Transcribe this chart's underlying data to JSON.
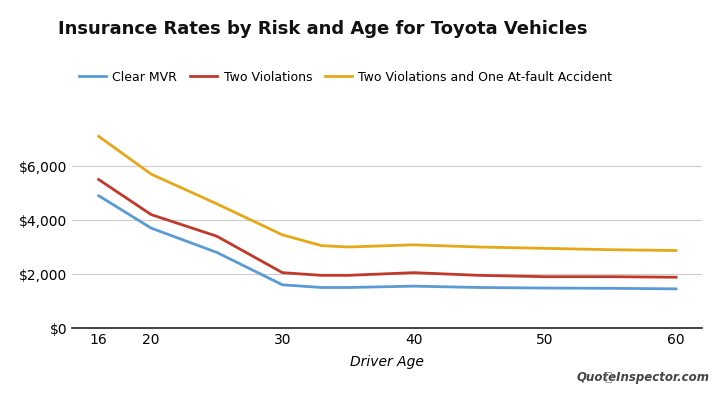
{
  "title": "Insurance Rates by Risk and Age for Toyota Vehicles",
  "xlabel": "Driver Age",
  "ages": [
    16,
    20,
    25,
    30,
    33,
    35,
    40,
    45,
    50,
    55,
    60
  ],
  "clear_mvr": [
    4900,
    3700,
    2800,
    1600,
    1500,
    1500,
    1550,
    1500,
    1480,
    1470,
    1450
  ],
  "two_violations": [
    5500,
    4200,
    3400,
    2050,
    1950,
    1950,
    2050,
    1950,
    1900,
    1900,
    1880
  ],
  "two_viol_one_accident": [
    7100,
    5700,
    4600,
    3450,
    3050,
    3000,
    3080,
    3000,
    2950,
    2900,
    2870
  ],
  "line_colors": [
    "#5b9bd5",
    "#c0392b",
    "#e6a817"
  ],
  "legend_labels": [
    "Clear MVR",
    "Two Violations",
    "Two Violations and One At-fault Accident"
  ],
  "ylim": [
    0,
    8000
  ],
  "yticks": [
    0,
    2000,
    4000,
    6000
  ],
  "xticks": [
    16,
    20,
    30,
    40,
    50,
    60
  ],
  "xlim": [
    14,
    62
  ],
  "background_color": "#ffffff",
  "grid_color": "#cccccc",
  "title_fontsize": 13,
  "legend_fontsize": 9,
  "xlabel_fontsize": 10,
  "tick_fontsize": 10,
  "line_width": 2.0,
  "watermark": "QuoteInspector.com"
}
